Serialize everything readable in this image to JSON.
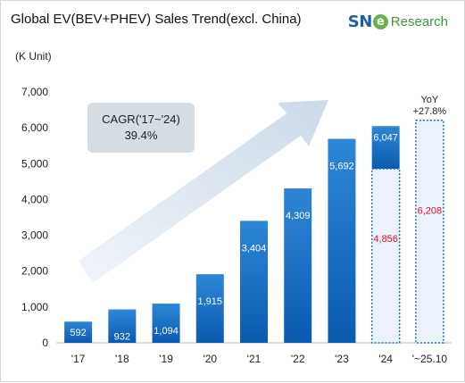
{
  "title": "Global EV(BEV+PHEV) Sales Trend(excl. China)",
  "unit": "(K Unit)",
  "logo": {
    "sn": "SN",
    "e": "e",
    "research": "Research"
  },
  "chart_data": {
    "type": "bar",
    "categories": [
      "'17",
      "'18",
      "'19",
      "'20",
      "'21",
      "'22",
      "'23",
      "'24",
      "'~25.10"
    ],
    "values": [
      592,
      932,
      1094,
      1915,
      3404,
      4309,
      5692,
      6047,
      6208
    ],
    "labels": [
      "592",
      "932",
      "1,094",
      "1,915",
      "3,404",
      "4,309",
      "5,692",
      "6,047",
      "6,208"
    ],
    "partial": {
      "category": "'24",
      "value": 4856,
      "label": "4,856",
      "label_color": "#e8101a"
    },
    "projected_index": 8,
    "projected_label_color": "#e8101a",
    "yticks": [
      0,
      1000,
      2000,
      3000,
      4000,
      5000,
      6000,
      7000
    ],
    "ytick_labels": [
      "0",
      "1,000",
      "2,000",
      "3,000",
      "4,000",
      "5,000",
      "6,000",
      "7,000"
    ],
    "ylim": [
      0,
      7000
    ],
    "grid": false,
    "annotation": {
      "line1": "CAGR('17~'24)",
      "line2": "39.4%"
    },
    "yoy": {
      "line1": "YoY",
      "line2": "+27.8%"
    },
    "colors": {
      "bar_top": "#2e86d6",
      "bar_bottom": "#0a5bb0",
      "dotted_border": "#1e6fc4",
      "dotted_fill": "#eaf2fb",
      "arrow": "#cfdbe8",
      "annotation_box": "#d5dde3"
    }
  }
}
